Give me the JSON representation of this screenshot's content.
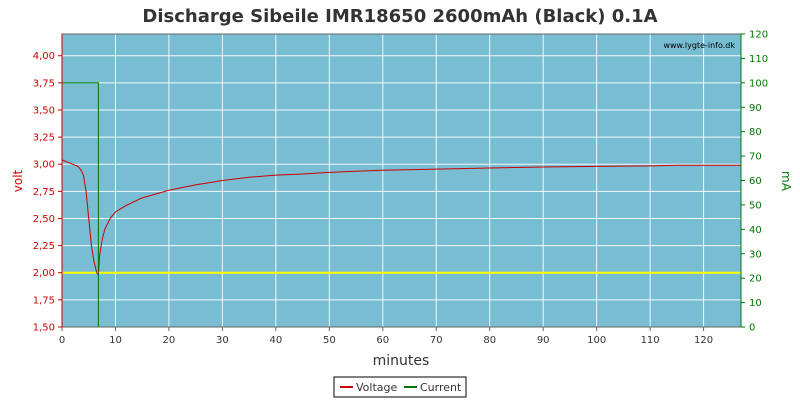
{
  "chart_data": {
    "type": "line",
    "title": "Discharge Sibeile IMR18650 2600mAh (Black) 0.1A",
    "watermark": "www.lygte-info.dk",
    "xlabel": "minutes",
    "ylabel": "volt",
    "y2label": "mA",
    "xlim": [
      0,
      127
    ],
    "ylim": [
      1.5,
      4.2
    ],
    "y2lim": [
      0,
      120
    ],
    "x_ticks": [
      0,
      10,
      20,
      30,
      40,
      50,
      60,
      70,
      80,
      90,
      100,
      110,
      120
    ],
    "y_ticks": [
      "1,50",
      "1,75",
      "2,00",
      "2,25",
      "2,50",
      "2,75",
      "3,00",
      "3,25",
      "3,50",
      "3,75",
      "4,00"
    ],
    "y2_ticks": [
      0,
      10,
      20,
      30,
      40,
      50,
      60,
      70,
      80,
      90,
      100,
      110,
      120
    ],
    "grid": true,
    "legend_position": "bottom-center",
    "colors": {
      "plot_bg": "#78bdd1",
      "grid": "#ffffff",
      "voltage": "#cc0000",
      "current": "#007700",
      "threshold": "#ffff00",
      "left_axis": "#cc0000",
      "right_axis": "#007700"
    },
    "threshold_line": {
      "y": 2.0
    },
    "series": [
      {
        "name": "Voltage",
        "axis": "left",
        "points": [
          [
            0,
            3.04
          ],
          [
            1,
            3.02
          ],
          [
            2,
            3.0
          ],
          [
            3,
            2.98
          ],
          [
            3.5,
            2.95
          ],
          [
            4,
            2.9
          ],
          [
            4.5,
            2.75
          ],
          [
            5,
            2.5
          ],
          [
            5.5,
            2.25
          ],
          [
            6,
            2.1
          ],
          [
            6.5,
            2.0
          ],
          [
            6.8,
            1.98
          ],
          [
            7,
            2.15
          ],
          [
            7.5,
            2.3
          ],
          [
            8,
            2.4
          ],
          [
            9,
            2.5
          ],
          [
            10,
            2.56
          ],
          [
            12,
            2.62
          ],
          [
            15,
            2.69
          ],
          [
            20,
            2.76
          ],
          [
            25,
            2.81
          ],
          [
            30,
            2.85
          ],
          [
            35,
            2.88
          ],
          [
            40,
            2.9
          ],
          [
            45,
            2.91
          ],
          [
            50,
            2.925
          ],
          [
            55,
            2.935
          ],
          [
            60,
            2.945
          ],
          [
            70,
            2.955
          ],
          [
            80,
            2.965
          ],
          [
            90,
            2.975
          ],
          [
            100,
            2.98
          ],
          [
            110,
            2.985
          ],
          [
            115,
            2.99
          ],
          [
            120,
            2.99
          ],
          [
            127,
            2.99
          ]
        ]
      },
      {
        "name": "Current",
        "axis": "right",
        "points": [
          [
            0,
            100
          ],
          [
            6.8,
            100
          ],
          [
            6.8,
            0
          ],
          [
            127,
            0
          ]
        ]
      }
    ]
  }
}
